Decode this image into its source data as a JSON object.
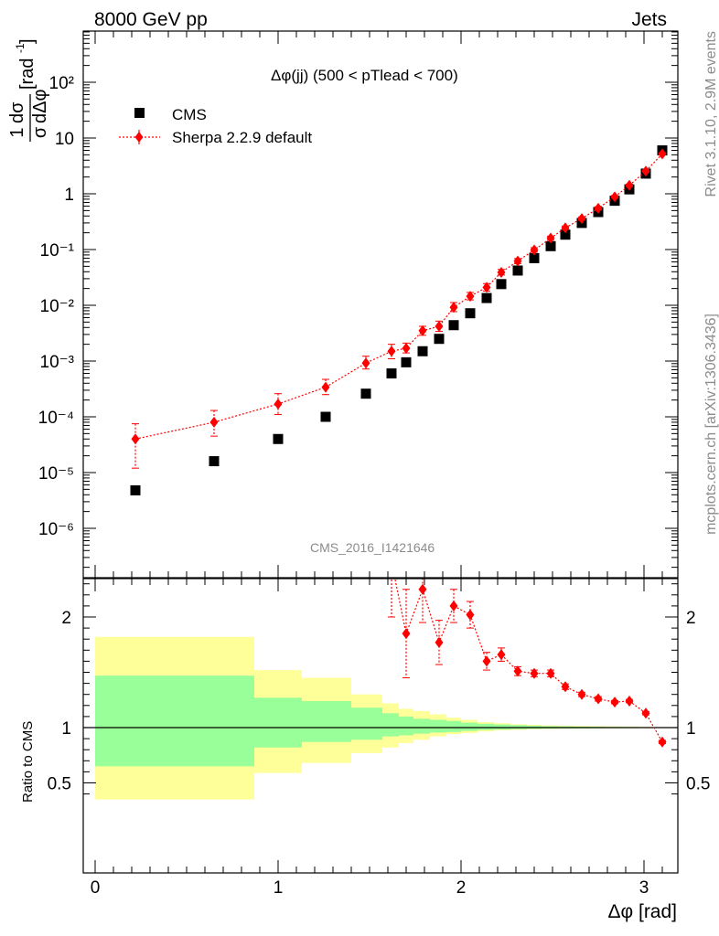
{
  "header": {
    "left": "8000 GeV pp",
    "right": "Jets"
  },
  "side": {
    "rivet": "Rivet 3.1.10,  2.9M events",
    "mcplots": "mcplots.cern.ch [arXiv:1306.3436]"
  },
  "watermark": "CMS_2016_I1421646",
  "colors": {
    "data": "#000000",
    "mc": "#ff0000",
    "band_outer": "#ffff99",
    "band_inner": "#99ff99"
  },
  "chart_data": [
    {
      "type": "scatter",
      "title": "Δφ(jj) (500 < pTlead <  700)",
      "ylabel": "1/σ dσ/dΔφ [rad⁻¹]",
      "yscale": "log",
      "xlim": [
        -0.1,
        3.2
      ],
      "ylim": [
        1e-07,
        1000
      ],
      "y_ticks": [
        "10⁻⁶",
        "10⁻⁵",
        "10⁻⁴",
        "10⁻³",
        "10⁻²",
        "10⁻¹",
        "1",
        "10",
        "10²"
      ],
      "legend_position": "top-left",
      "series": [
        {
          "name": "CMS",
          "marker": "square",
          "x": [
            0.22,
            0.65,
            1.0,
            1.26,
            1.48,
            1.62,
            1.7,
            1.79,
            1.88,
            1.96,
            2.05,
            2.14,
            2.22,
            2.31,
            2.4,
            2.49,
            2.57,
            2.66,
            2.75,
            2.84,
            2.92,
            3.01,
            3.1
          ],
          "y": [
            4.8e-06,
            1.6e-05,
            4e-05,
            0.0001,
            0.00026,
            0.0006,
            0.00095,
            0.0015,
            0.0025,
            0.0044,
            0.0072,
            0.0135,
            0.024,
            0.042,
            0.07,
            0.115,
            0.185,
            0.3,
            0.47,
            0.75,
            1.2,
            2.3,
            6.0
          ]
        },
        {
          "name": "Sherpa 2.2.9 default",
          "marker": "diamond",
          "x": [
            0.22,
            0.65,
            1.0,
            1.26,
            1.48,
            1.62,
            1.7,
            1.79,
            1.88,
            1.96,
            2.05,
            2.14,
            2.22,
            2.31,
            2.4,
            2.49,
            2.57,
            2.66,
            2.75,
            2.84,
            2.92,
            3.01,
            3.1
          ],
          "y": [
            4e-05,
            8e-05,
            0.00017,
            0.00034,
            0.00092,
            0.0015,
            0.0017,
            0.0035,
            0.0042,
            0.0092,
            0.0145,
            0.021,
            0.039,
            0.062,
            0.098,
            0.16,
            0.245,
            0.36,
            0.55,
            0.88,
            1.42,
            2.55,
            5.2
          ],
          "yerr_low": [
            2.8e-05,
            3.5e-05,
            6e-05,
            9e-05,
            0.0002,
            0.0004,
            0.0003,
            0.0006,
            0.0008,
            0.0015,
            0.002,
            0.003,
            0.004,
            0.006,
            0.008,
            0.012,
            0.015,
            0.02,
            0.03,
            0.04,
            0.06,
            0.1,
            0.2
          ],
          "yerr_high": [
            3.5e-05,
            5e-05,
            9e-05,
            0.00013,
            0.0003,
            0.0005,
            0.0004,
            0.0007,
            0.001,
            0.002,
            0.0025,
            0.0035,
            0.005,
            0.007,
            0.01,
            0.014,
            0.018,
            0.025,
            0.035,
            0.05,
            0.07,
            0.12,
            0.25
          ]
        }
      ]
    },
    {
      "type": "line",
      "ylabel": "Ratio to CMS",
      "xlabel": "Δφ [rad]",
      "xlim": [
        -0.1,
        3.2
      ],
      "ylim": [
        0.35,
        2.3
      ],
      "x_ticks": [
        "0",
        "1",
        "2",
        "3"
      ],
      "y_ticks": [
        "0.5",
        "1",
        "2"
      ],
      "bands": {
        "edges": [
          0,
          0.43,
          0.87,
          1.13,
          1.4,
          1.57,
          1.66,
          1.74,
          1.83,
          1.92,
          2.0,
          2.09,
          2.18,
          2.27,
          2.36,
          2.44,
          2.53,
          2.62,
          2.71,
          2.79,
          2.88,
          2.97,
          3.05,
          3.14
        ],
        "outer_low": [
          0.35,
          0.35,
          0.59,
          0.68,
          0.77,
          0.82,
          0.86,
          0.89,
          0.92,
          0.94,
          0.95,
          0.965,
          0.975,
          0.98,
          0.985,
          0.988,
          0.99,
          0.992,
          0.993,
          0.994,
          0.995,
          0.996,
          0.997
        ],
        "outer_high": [
          1.82,
          1.82,
          1.52,
          1.45,
          1.3,
          1.22,
          1.17,
          1.15,
          1.12,
          1.09,
          1.07,
          1.05,
          1.04,
          1.03,
          1.025,
          1.02,
          1.017,
          1.015,
          1.013,
          1.011,
          1.009,
          1.007,
          1.005
        ],
        "inner_low": [
          0.65,
          0.65,
          0.82,
          0.87,
          0.89,
          0.92,
          0.93,
          0.945,
          0.955,
          0.96,
          0.97,
          0.978,
          0.982,
          0.986,
          0.989,
          0.991,
          0.993,
          0.994,
          0.995,
          0.996,
          0.997,
          0.998,
          0.998
        ],
        "inner_high": [
          1.47,
          1.47,
          1.27,
          1.24,
          1.18,
          1.13,
          1.1,
          1.08,
          1.07,
          1.06,
          1.045,
          1.035,
          1.028,
          1.022,
          1.017,
          1.013,
          1.011,
          1.009,
          1.008,
          1.007,
          1.006,
          1.004,
          1.003
        ]
      },
      "series": [
        {
          "name": "Sherpa 2.2.9 default",
          "x": [
            1.62,
            1.7,
            1.79,
            1.88,
            1.96,
            2.05,
            2.14,
            2.22,
            2.31,
            2.4,
            2.49,
            2.57,
            2.66,
            2.75,
            2.84,
            2.92,
            3.01,
            3.1
          ],
          "y": [
            2.5,
            1.85,
            2.25,
            1.77,
            2.1,
            2.02,
            1.6,
            1.66,
            1.51,
            1.49,
            1.49,
            1.37,
            1.3,
            1.26,
            1.23,
            1.24,
            1.13,
            0.87
          ],
          "yerr": [
            0.5,
            0.4,
            0.3,
            0.2,
            0.15,
            0.12,
            0.08,
            0.06,
            0.04,
            0.03,
            0.03,
            0.025,
            0.02,
            0.02,
            0.015,
            0.015,
            0.015,
            0.015
          ]
        }
      ]
    }
  ]
}
